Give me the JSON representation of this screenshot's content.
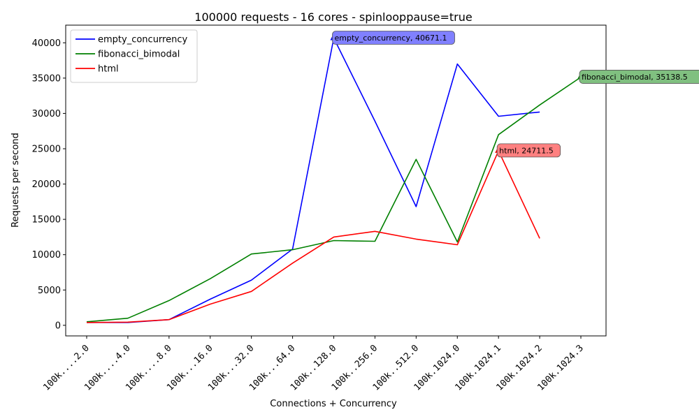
{
  "chart_data": {
    "type": "line",
    "title": "100000 requests - 16 cores - spinlooppause=true",
    "xlabel": "Connections + Concurrency",
    "ylabel": "Requests per second",
    "categories": [
      "100k....2.0",
      "100k....4.0",
      "100k....8.0",
      "100k...16.0",
      "100k...32.0",
      "100k...64.0",
      "100k..128.0",
      "100k..256.0",
      "100k..512.0",
      "100k.1024.0",
      "100k.1024.1",
      "100k.1024.2",
      "100k.1024.3"
    ],
    "ylim": [
      -1500,
      42500
    ],
    "yticks": [
      0,
      5000,
      10000,
      15000,
      20000,
      25000,
      30000,
      35000,
      40000
    ],
    "grid": false,
    "legend_position": "top-left",
    "series": [
      {
        "name": "empty_concurrency",
        "color": "#0000ff",
        "values": [
          400,
          400,
          800,
          3700,
          6400,
          10800,
          40671.1,
          28900,
          16800,
          37000,
          29600,
          30200,
          null
        ]
      },
      {
        "name": "fibonacci_bimodal",
        "color": "#008000",
        "values": [
          500,
          1000,
          3500,
          6600,
          10100,
          10700,
          12000,
          11900,
          23500,
          11800,
          27000,
          31200,
          35138.5
        ]
      },
      {
        "name": "html",
        "color": "#ff0000",
        "values": [
          400,
          450,
          800,
          3000,
          4800,
          8800,
          12500,
          13300,
          12200,
          11400,
          24711.5,
          12300,
          null
        ]
      }
    ],
    "annotations": [
      {
        "series": 0,
        "index": 6,
        "text": "empty_concurrency, 40671.1",
        "bg": "#8080ff"
      },
      {
        "series": 1,
        "index": 12,
        "text": "fibonacci_bimodal, 35138.5",
        "bg": "#80c080"
      },
      {
        "series": 2,
        "index": 10,
        "text": "html, 24711.5",
        "bg": "#ff8080"
      }
    ]
  }
}
